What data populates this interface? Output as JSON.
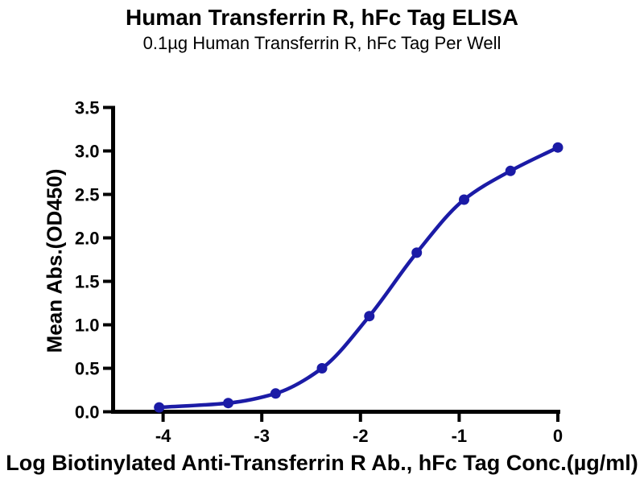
{
  "chart_data": {
    "type": "line",
    "title": "Human Transferrin R, hFc Tag ELISA",
    "subtitle": "0.1µg Human Transferrin R, hFc Tag Per Well",
    "xlabel": "Log Biotinylated Anti-Transferrin R Ab., hFc Tag Conc.(µg/ml)",
    "ylabel": "Mean Abs.(OD450)",
    "xlim": [
      -4,
      0
    ],
    "ylim": [
      0,
      3.5
    ],
    "x_ticks": [
      -4,
      -3,
      -2,
      -1,
      0
    ],
    "x_tick_labels": [
      "-4",
      "-3",
      "-2",
      "-1",
      "0"
    ],
    "y_ticks": [
      0,
      0.5,
      1,
      1.5,
      2,
      2.5,
      3,
      3.5
    ],
    "y_tick_labels": [
      "0.0",
      "0.5",
      "1.0",
      "1.5",
      "2.0",
      "2.5",
      "3.0",
      "3.5"
    ],
    "grid": false,
    "legend": "none",
    "curve_style": "sigmoid-4PL-fit-through-points",
    "series": [
      {
        "marker": "circle",
        "color": "#1b1ba6",
        "x": [
          -4.04,
          -3.34,
          -2.86,
          -2.39,
          -1.91,
          -1.43,
          -0.95,
          -0.48,
          0.0
        ],
        "y": [
          0.05,
          0.1,
          0.21,
          0.5,
          1.1,
          1.83,
          2.44,
          2.77,
          3.04
        ]
      }
    ]
  },
  "colors": {
    "curve": "#1b1ba6",
    "axis": "#000000",
    "background": "#ffffff"
  }
}
